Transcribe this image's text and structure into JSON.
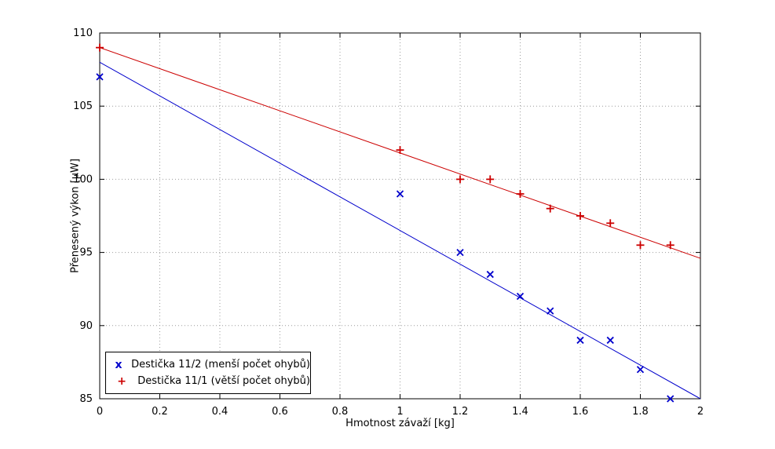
{
  "chart_data": {
    "type": "scatter",
    "title": "",
    "xlabel": "Hmotnost závaží [kg]",
    "ylabel": "Přenesený výkon [µW]",
    "xlim": [
      0,
      2
    ],
    "ylim": [
      85,
      110
    ],
    "xticks": [
      0,
      0.2,
      0.4,
      0.6,
      0.8,
      1,
      1.2,
      1.4,
      1.6,
      1.8,
      2
    ],
    "yticks": [
      85,
      90,
      95,
      100,
      105,
      110
    ],
    "grid": true,
    "grid_color": "#9c9c9c",
    "axis_color": "#000000",
    "legend_position": "bottom-left",
    "series": [
      {
        "name": "Destička 11/2 (menší počet ohybů)",
        "marker": "x",
        "color": "#0000cc",
        "points": [
          [
            0,
            107
          ],
          [
            1,
            99
          ],
          [
            1.2,
            95
          ],
          [
            1.3,
            93.5
          ],
          [
            1.4,
            92
          ],
          [
            1.5,
            91
          ],
          [
            1.6,
            89
          ],
          [
            1.7,
            89
          ],
          [
            1.8,
            87
          ],
          [
            1.9,
            85
          ]
        ],
        "fit_line": {
          "x": [
            0,
            2
          ],
          "y": [
            108,
            85
          ]
        }
      },
      {
        "name": "Destička 11/1 (větší počet ohybů)",
        "marker": "+",
        "color": "#cc0000",
        "points": [
          [
            0,
            109
          ],
          [
            1,
            102
          ],
          [
            1.2,
            100
          ],
          [
            1.3,
            100
          ],
          [
            1.4,
            99
          ],
          [
            1.5,
            98
          ],
          [
            1.6,
            97.5
          ],
          [
            1.7,
            97
          ],
          [
            1.8,
            95.5
          ],
          [
            1.9,
            95.5
          ]
        ],
        "fit_line": {
          "x": [
            0,
            2
          ],
          "y": [
            109,
            94.6
          ]
        }
      }
    ]
  }
}
